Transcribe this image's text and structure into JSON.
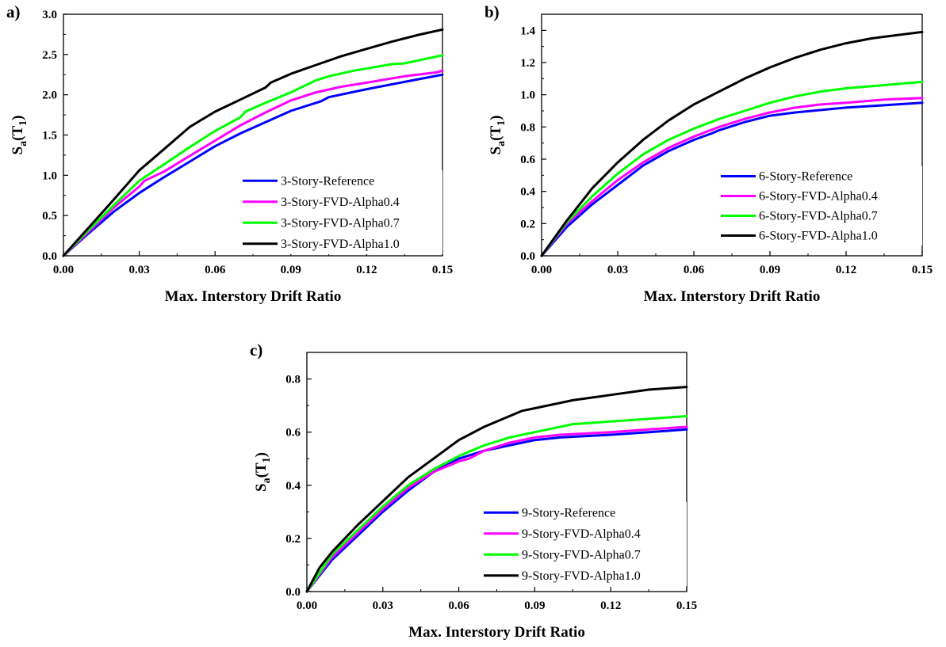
{
  "chart_data": [
    {
      "type": "line",
      "panel_label": "a)",
      "xlabel": "Max. Interstory Drift Ratio",
      "ylabel_main": "S",
      "ylabel_sub_a": "a",
      "ylabel_mid": "(T",
      "ylabel_sub_1": "1",
      "ylabel_end": ")",
      "xlim": [
        0,
        0.15
      ],
      "ylim": [
        0,
        3.0
      ],
      "xticks": [
        "0.00",
        "0.03",
        "0.06",
        "0.09",
        "0.12",
        "0.15"
      ],
      "yticks": [
        "0.0",
        "0.5",
        "1.0",
        "1.5",
        "2.0",
        "2.5",
        "3.0"
      ],
      "grid": false,
      "legend_position": "bottom-right",
      "series": [
        {
          "name": "3-Story-Reference",
          "color": "#0000ff",
          "x": [
            0,
            0.01,
            0.02,
            0.03,
            0.04,
            0.05,
            0.06,
            0.07,
            0.08,
            0.09,
            0.1,
            0.102,
            0.105,
            0.12,
            0.135,
            0.15
          ],
          "y": [
            0,
            0.28,
            0.55,
            0.78,
            0.98,
            1.17,
            1.36,
            1.52,
            1.66,
            1.8,
            1.9,
            1.92,
            1.97,
            2.07,
            2.16,
            2.25
          ]
        },
        {
          "name": "3-Story-FVD-Alpha0.4",
          "color": "#ff00ff",
          "x": [
            0,
            0.01,
            0.02,
            0.03,
            0.032,
            0.04,
            0.05,
            0.06,
            0.07,
            0.08,
            0.09,
            0.1,
            0.11,
            0.12,
            0.135,
            0.148,
            0.15
          ],
          "y": [
            0,
            0.3,
            0.6,
            0.86,
            0.93,
            1.05,
            1.24,
            1.43,
            1.62,
            1.78,
            1.93,
            2.03,
            2.1,
            2.15,
            2.23,
            2.28,
            2.3
          ]
        },
        {
          "name": "3-Story-FVD-Alpha0.7",
          "color": "#00ff00",
          "x": [
            0,
            0.01,
            0.02,
            0.03,
            0.04,
            0.05,
            0.06,
            0.07,
            0.072,
            0.08,
            0.09,
            0.1,
            0.105,
            0.115,
            0.13,
            0.135,
            0.15
          ],
          "y": [
            0,
            0.32,
            0.63,
            0.93,
            1.14,
            1.35,
            1.55,
            1.72,
            1.79,
            1.9,
            2.03,
            2.18,
            2.23,
            2.3,
            2.38,
            2.39,
            2.49
          ]
        },
        {
          "name": "3-Story-FVD-Alpha1.0",
          "color": "#000000",
          "x": [
            0,
            0.01,
            0.02,
            0.03,
            0.04,
            0.05,
            0.06,
            0.07,
            0.08,
            0.082,
            0.09,
            0.1,
            0.11,
            0.12,
            0.13,
            0.14,
            0.15
          ],
          "y": [
            0,
            0.35,
            0.7,
            1.06,
            1.33,
            1.6,
            1.79,
            1.94,
            2.09,
            2.15,
            2.26,
            2.37,
            2.48,
            2.57,
            2.66,
            2.74,
            2.81
          ]
        }
      ]
    },
    {
      "type": "line",
      "panel_label": "b)",
      "xlabel": "Max. Interstory Drift Ratio",
      "ylabel_main": "S",
      "ylabel_sub_a": "a",
      "ylabel_mid": "(T",
      "ylabel_sub_1": "1",
      "ylabel_end": ")",
      "xlim": [
        0,
        0.15
      ],
      "ylim": [
        0,
        1.5
      ],
      "xticks": [
        "0.00",
        "0.03",
        "0.06",
        "0.09",
        "0.12",
        "0.15"
      ],
      "yticks": [
        "0.0",
        "0.2",
        "0.4",
        "0.6",
        "0.8",
        "1.0",
        "1.2",
        "1.4"
      ],
      "grid": false,
      "legend_position": "bottom-right",
      "series": [
        {
          "name": "6-Story-Reference",
          "color": "#0000ff",
          "x": [
            0,
            0.01,
            0.02,
            0.03,
            0.04,
            0.05,
            0.06,
            0.067,
            0.07,
            0.08,
            0.09,
            0.1,
            0.12,
            0.135,
            0.15
          ],
          "y": [
            0,
            0.18,
            0.32,
            0.44,
            0.56,
            0.65,
            0.72,
            0.76,
            0.78,
            0.83,
            0.87,
            0.89,
            0.92,
            0.935,
            0.95
          ]
        },
        {
          "name": "6-Story-FVD-Alpha0.4",
          "color": "#ff00ff",
          "x": [
            0,
            0.01,
            0.02,
            0.03,
            0.04,
            0.05,
            0.06,
            0.07,
            0.08,
            0.09,
            0.1,
            0.11,
            0.12,
            0.135,
            0.15
          ],
          "y": [
            0,
            0.2,
            0.34,
            0.47,
            0.58,
            0.67,
            0.74,
            0.8,
            0.85,
            0.89,
            0.92,
            0.94,
            0.95,
            0.97,
            0.98
          ]
        },
        {
          "name": "6-Story-FVD-Alpha0.7",
          "color": "#00ff00",
          "x": [
            0,
            0.01,
            0.02,
            0.03,
            0.04,
            0.05,
            0.06,
            0.07,
            0.08,
            0.09,
            0.1,
            0.11,
            0.12,
            0.135,
            0.15
          ],
          "y": [
            0,
            0.21,
            0.37,
            0.51,
            0.63,
            0.72,
            0.79,
            0.85,
            0.9,
            0.95,
            0.99,
            1.02,
            1.04,
            1.06,
            1.08
          ]
        },
        {
          "name": "6-Story-FVD-Alpha1.0",
          "color": "#000000",
          "x": [
            0,
            0.01,
            0.02,
            0.03,
            0.04,
            0.05,
            0.06,
            0.07,
            0.075,
            0.08,
            0.09,
            0.1,
            0.11,
            0.12,
            0.13,
            0.14,
            0.15
          ],
          "y": [
            0,
            0.22,
            0.42,
            0.58,
            0.72,
            0.84,
            0.94,
            1.02,
            1.06,
            1.1,
            1.17,
            1.23,
            1.28,
            1.32,
            1.35,
            1.37,
            1.39
          ]
        }
      ]
    },
    {
      "type": "line",
      "panel_label": "c)",
      "xlabel": "Max. Interstory Drift Ratio",
      "ylabel_main": "S",
      "ylabel_sub_a": "a",
      "ylabel_mid": "(T",
      "ylabel_sub_1": "1",
      "ylabel_end": ")",
      "xlim": [
        0,
        0.15
      ],
      "ylim": [
        0,
        0.9
      ],
      "xticks": [
        "0.00",
        "0.03",
        "0.06",
        "0.09",
        "0.12",
        "0.15"
      ],
      "yticks": [
        "0.0",
        "0.2",
        "0.4",
        "0.6",
        "0.8"
      ],
      "grid": false,
      "legend_position": "bottom-right",
      "series": [
        {
          "name": "9-Story-Reference",
          "color": "#0000ff",
          "x": [
            0,
            0.01,
            0.02,
            0.03,
            0.04,
            0.05,
            0.06,
            0.07,
            0.08,
            0.09,
            0.1,
            0.12,
            0.135,
            0.15
          ],
          "y": [
            0,
            0.12,
            0.21,
            0.3,
            0.38,
            0.45,
            0.5,
            0.53,
            0.55,
            0.57,
            0.58,
            0.59,
            0.6,
            0.61
          ]
        },
        {
          "name": "9-Story-FVD-Alpha0.4",
          "color": "#ff00ff",
          "x": [
            0,
            0.01,
            0.02,
            0.03,
            0.04,
            0.05,
            0.06,
            0.064,
            0.07,
            0.08,
            0.09,
            0.1,
            0.12,
            0.135,
            0.15
          ],
          "y": [
            0,
            0.13,
            0.22,
            0.31,
            0.39,
            0.45,
            0.49,
            0.5,
            0.53,
            0.56,
            0.58,
            0.59,
            0.6,
            0.61,
            0.62
          ]
        },
        {
          "name": "9-Story-FVD-Alpha0.7",
          "color": "#00ff00",
          "x": [
            0,
            0.01,
            0.02,
            0.03,
            0.04,
            0.05,
            0.06,
            0.07,
            0.08,
            0.09,
            0.1,
            0.105,
            0.12,
            0.135,
            0.15
          ],
          "y": [
            0,
            0.14,
            0.23,
            0.32,
            0.4,
            0.46,
            0.51,
            0.55,
            0.58,
            0.6,
            0.62,
            0.63,
            0.64,
            0.65,
            0.66
          ]
        },
        {
          "name": "9-Story-FVD-Alpha1.0",
          "color": "#000000",
          "x": [
            0,
            0.005,
            0.01,
            0.02,
            0.03,
            0.04,
            0.05,
            0.06,
            0.07,
            0.08,
            0.085,
            0.09,
            0.1,
            0.105,
            0.12,
            0.135,
            0.15
          ],
          "y": [
            0,
            0.09,
            0.15,
            0.25,
            0.34,
            0.43,
            0.5,
            0.57,
            0.62,
            0.66,
            0.68,
            0.69,
            0.71,
            0.72,
            0.74,
            0.76,
            0.77
          ]
        }
      ]
    }
  ]
}
